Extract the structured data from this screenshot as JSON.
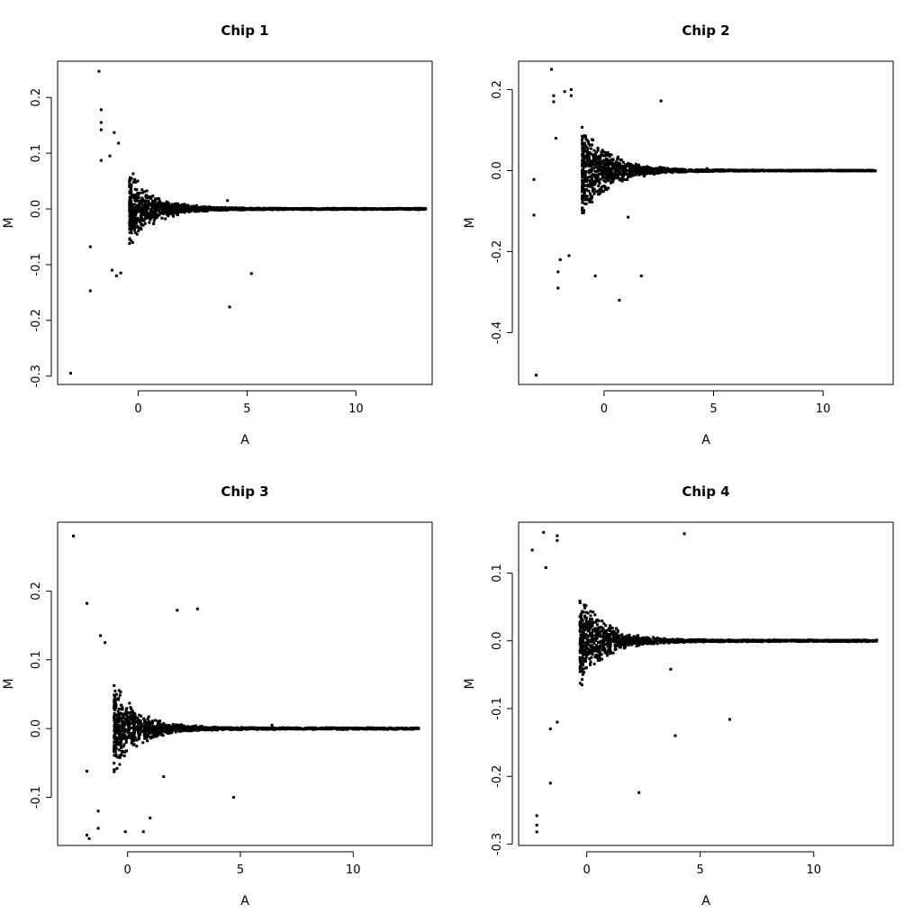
{
  "chart_data": [
    {
      "type": "scatter",
      "title": "Chip 1",
      "xlabel": "A",
      "ylabel": "M",
      "xlim": [
        -3.7,
        13.5
      ],
      "ylim": [
        -0.315,
        0.265
      ],
      "xticks": [
        0,
        5,
        10
      ],
      "yticks": [
        -0.3,
        -0.2,
        -0.1,
        0.0,
        0.1,
        0.2
      ],
      "ytick_labels": [
        "-0.3",
        "-0.2",
        "-0.1",
        "0.0",
        "0.1",
        "0.2"
      ],
      "cloud": {
        "x_start": -0.4,
        "x_end": 13.2,
        "spread_max": 0.075,
        "decay": 0.9
      },
      "outliers": [
        [
          -3.1,
          -0.295
        ],
        [
          -2.2,
          -0.147
        ],
        [
          -2.2,
          -0.068
        ],
        [
          -1.8,
          0.247
        ],
        [
          -1.7,
          0.178
        ],
        [
          -1.7,
          0.155
        ],
        [
          -1.7,
          0.142
        ],
        [
          -1.7,
          0.087
        ],
        [
          -1.3,
          0.095
        ],
        [
          -1.1,
          0.137
        ],
        [
          -0.9,
          0.118
        ],
        [
          -1.2,
          -0.11
        ],
        [
          -1.0,
          -0.12
        ],
        [
          -0.8,
          -0.115
        ],
        [
          4.2,
          -0.176
        ],
        [
          5.2,
          -0.116
        ],
        [
          4.1,
          0.015
        ]
      ]
    },
    {
      "type": "scatter",
      "title": "Chip 2",
      "xlabel": "A",
      "ylabel": "M",
      "xlim": [
        -3.9,
        13.2
      ],
      "ylim": [
        -0.528,
        0.27
      ],
      "xticks": [
        0,
        5,
        10
      ],
      "yticks": [
        -0.4,
        -0.2,
        0.0,
        0.2
      ],
      "ytick_labels": [
        "-0.4",
        "-0.2",
        "0.0",
        "0.2"
      ],
      "cloud": {
        "x_start": -1.0,
        "x_end": 12.4,
        "spread_max": 0.13,
        "decay": 0.8
      },
      "outliers": [
        [
          -3.1,
          -0.505
        ],
        [
          -3.2,
          -0.022
        ],
        [
          -3.2,
          -0.11
        ],
        [
          -2.4,
          0.25
        ],
        [
          -2.3,
          0.185
        ],
        [
          -2.3,
          0.17
        ],
        [
          -2.2,
          0.08
        ],
        [
          -2.1,
          -0.29
        ],
        [
          -2.1,
          -0.25
        ],
        [
          -2.0,
          -0.22
        ],
        [
          -1.8,
          0.195
        ],
        [
          -1.5,
          0.2
        ],
        [
          -1.5,
          0.185
        ],
        [
          -1.6,
          -0.21
        ],
        [
          -0.4,
          -0.26
        ],
        [
          0.7,
          -0.32
        ],
        [
          1.1,
          -0.115
        ],
        [
          1.7,
          -0.26
        ],
        [
          2.6,
          0.172
        ],
        [
          4.7,
          0.005
        ]
      ]
    },
    {
      "type": "scatter",
      "title": "Chip 3",
      "xlabel": "A",
      "ylabel": "M",
      "xlim": [
        -3.1,
        13.5
      ],
      "ylim": [
        -0.17,
        0.3
      ],
      "xticks": [
        0,
        5,
        10
      ],
      "yticks": [
        -0.1,
        0.0,
        0.1,
        0.2
      ],
      "ytick_labels": [
        "-0.1",
        "0.0",
        "0.1",
        "0.2"
      ],
      "cloud": {
        "x_start": -0.6,
        "x_end": 12.9,
        "spread_max": 0.07,
        "decay": 0.9
      },
      "outliers": [
        [
          -2.4,
          0.28
        ],
        [
          -1.8,
          0.182
        ],
        [
          -1.8,
          -0.062
        ],
        [
          -1.8,
          -0.155
        ],
        [
          -1.7,
          -0.16
        ],
        [
          -1.3,
          -0.145
        ],
        [
          -1.3,
          -0.12
        ],
        [
          -1.2,
          0.135
        ],
        [
          -1.0,
          0.125
        ],
        [
          -0.1,
          -0.15
        ],
        [
          0.7,
          -0.15
        ],
        [
          1.0,
          -0.13
        ],
        [
          1.6,
          -0.07
        ],
        [
          2.2,
          0.172
        ],
        [
          3.1,
          0.174
        ],
        [
          4.7,
          -0.1
        ],
        [
          6.4,
          0.005
        ]
      ]
    },
    {
      "type": "scatter",
      "title": "Chip 4",
      "xlabel": "A",
      "ylabel": "M",
      "xlim": [
        -3.0,
        13.5
      ],
      "ylim": [
        -0.302,
        0.175
      ],
      "xticks": [
        0,
        5,
        10
      ],
      "yticks": [
        -0.3,
        -0.2,
        -0.1,
        0.0,
        0.1
      ],
      "ytick_labels": [
        "-0.3",
        "-0.2",
        "-0.1",
        "0.0",
        "0.1"
      ],
      "cloud": {
        "x_start": -0.3,
        "x_end": 12.8,
        "spread_max": 0.075,
        "decay": 0.9
      },
      "outliers": [
        [
          -2.4,
          0.134
        ],
        [
          -2.2,
          -0.258
        ],
        [
          -2.2,
          -0.272
        ],
        [
          -2.2,
          -0.282
        ],
        [
          -1.9,
          0.16
        ],
        [
          -1.8,
          0.108
        ],
        [
          -1.6,
          -0.21
        ],
        [
          -1.6,
          -0.13
        ],
        [
          -1.3,
          0.155
        ],
        [
          -1.3,
          0.148
        ],
        [
          -1.3,
          -0.12
        ],
        [
          2.3,
          -0.224
        ],
        [
          3.7,
          -0.042
        ],
        [
          3.9,
          -0.14
        ],
        [
          4.3,
          0.158
        ],
        [
          6.3,
          -0.116
        ]
      ]
    }
  ]
}
